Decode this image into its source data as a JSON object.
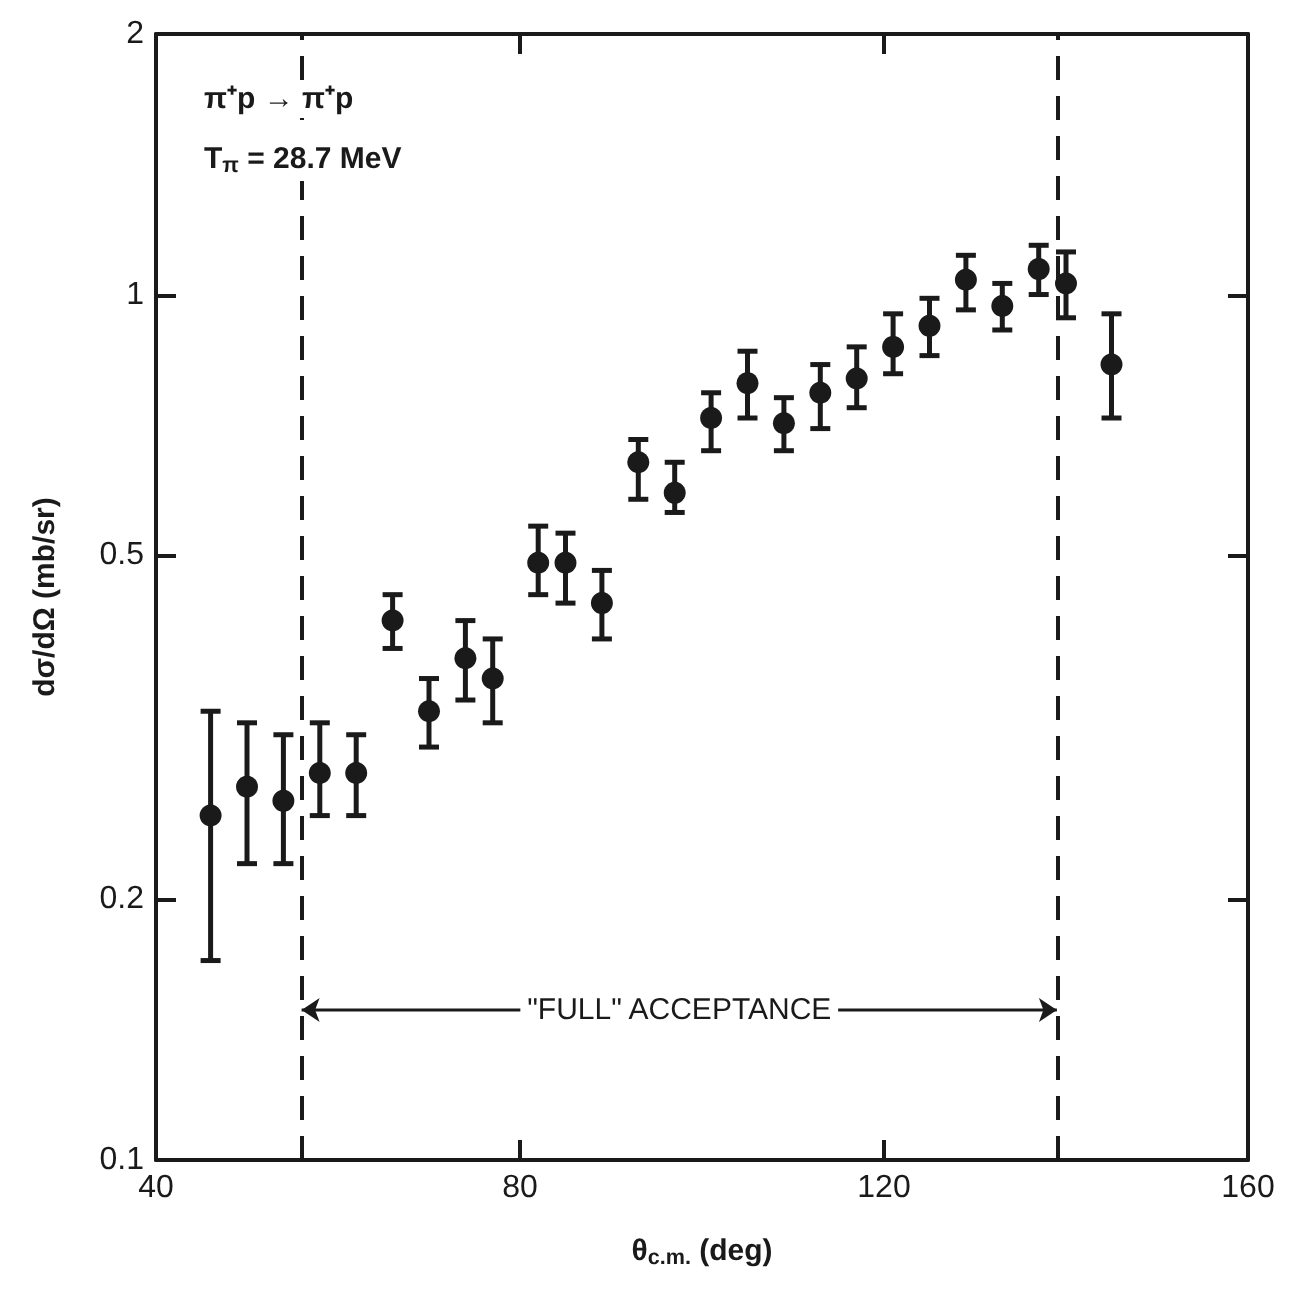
{
  "chart_data": {
    "type": "scatter",
    "xlabel": "θ$_{c.m.}$ (deg)",
    "ylabel": "dσ/dΩ (mb/sr)",
    "annotations": [
      "π⁺p → π⁺p",
      "T$_{π}$ = 28.7 MeV",
      "\"FULL\" ACCEPTANCE"
    ],
    "x": [
      46,
      50,
      54,
      58,
      62,
      66,
      70,
      74,
      77,
      82,
      85,
      89,
      93,
      97,
      101,
      105,
      109,
      113,
      117,
      121,
      125,
      129,
      133,
      137,
      140,
      145
    ],
    "values": [
      0.25,
      0.27,
      0.26,
      0.28,
      0.28,
      0.42,
      0.33,
      0.38,
      0.36,
      0.49,
      0.49,
      0.44,
      0.64,
      0.59,
      0.72,
      0.79,
      0.71,
      0.77,
      0.8,
      0.87,
      0.92,
      1.04,
      0.97,
      1.07,
      1.03,
      0.83
    ],
    "errors": [
      [
        0.17,
        0.33
      ],
      [
        0.22,
        0.32
      ],
      [
        0.22,
        0.31
      ],
      [
        0.25,
        0.32
      ],
      [
        0.25,
        0.31
      ],
      [
        0.39,
        0.45
      ],
      [
        0.3,
        0.36
      ],
      [
        0.34,
        0.42
      ],
      [
        0.32,
        0.4
      ],
      [
        0.45,
        0.54
      ],
      [
        0.44,
        0.53
      ],
      [
        0.4,
        0.48
      ],
      [
        0.58,
        0.68
      ],
      [
        0.56,
        0.64
      ],
      [
        0.66,
        0.77
      ],
      [
        0.72,
        0.86
      ],
      [
        0.66,
        0.76
      ],
      [
        0.7,
        0.83
      ],
      [
        0.74,
        0.87
      ],
      [
        0.81,
        0.95
      ],
      [
        0.85,
        0.99
      ],
      [
        0.96,
        1.11
      ],
      [
        0.91,
        1.03
      ],
      [
        1.0,
        1.14
      ],
      [
        0.94,
        1.12
      ],
      [
        0.72,
        0.95
      ]
    ],
    "color": "#1a1a1a",
    "marker": "circle",
    "xlim": [
      40,
      160
    ],
    "xticks": [
      40,
      80,
      120,
      160
    ],
    "ylim": [
      0.1,
      2
    ],
    "yticks": [
      0.1,
      0.2,
      0.5,
      1,
      2
    ],
    "log": "y",
    "grid": false,
    "ref_lines": [
      {
        "axis": "x",
        "value": 56,
        "line_style": "dashed"
      },
      {
        "axis": "x",
        "value": 139,
        "line_style": "dashed"
      }
    ]
  }
}
